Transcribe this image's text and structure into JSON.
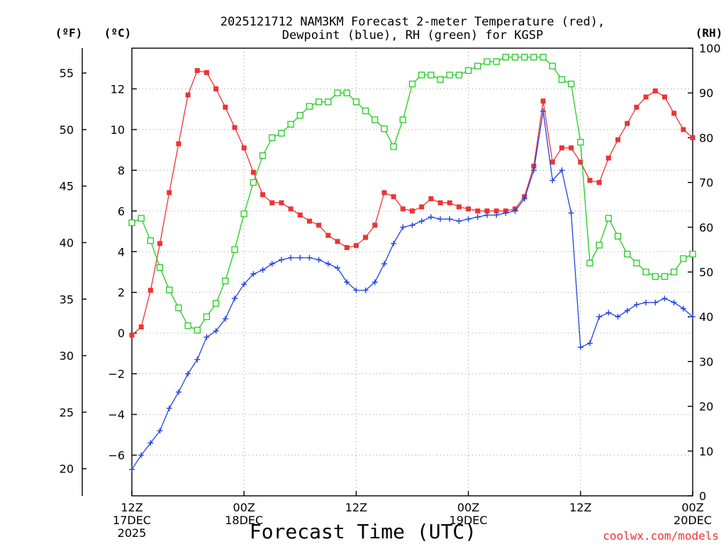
{
  "chart_data": {
    "type": "line",
    "title_line1": "2025121712 NAM3KM Forecast 2-meter Temperature (red),",
    "title_line2": "Dewpoint (blue), RH (green) for KGSP",
    "xlabel": "Forecast Time (UTC)",
    "credit": "coolwx.com/models",
    "colors": {
      "temperature": "#ee3333",
      "dewpoint": "#2244dd",
      "rh": "#22cc22"
    },
    "axes": {
      "fahrenheit": {
        "label": "(ºF)",
        "range": [
          17.6,
          57.2
        ],
        "ticks": [
          20,
          25,
          30,
          35,
          40,
          45,
          50,
          55
        ]
      },
      "celsius": {
        "label": "(ºC)",
        "range": [
          -8,
          14
        ],
        "ticks": [
          -6,
          -4,
          -2,
          0,
          2,
          4,
          6,
          8,
          10,
          12
        ]
      },
      "rh": {
        "label": "(RH)",
        "range": [
          0,
          100
        ],
        "ticks": [
          0,
          10,
          20,
          30,
          40,
          50,
          60,
          70,
          80,
          90,
          100
        ]
      },
      "time": {
        "range": [
          0,
          60
        ],
        "ticks": [
          {
            "t": 0,
            "lines": [
              "12Z",
              "17DEC",
              "2025"
            ]
          },
          {
            "t": 12,
            "lines": [
              "00Z",
              "18DEC"
            ]
          },
          {
            "t": 24,
            "lines": [
              "12Z"
            ]
          },
          {
            "t": 36,
            "lines": [
              "00Z",
              "19DEC"
            ]
          },
          {
            "t": 48,
            "lines": [
              "12Z"
            ]
          },
          {
            "t": 60,
            "lines": [
              "00Z",
              "20DEC"
            ]
          }
        ]
      }
    },
    "x": [
      0,
      1,
      2,
      3,
      4,
      5,
      6,
      7,
      8,
      9,
      10,
      11,
      12,
      13,
      14,
      15,
      16,
      17,
      18,
      19,
      20,
      21,
      22,
      23,
      24,
      25,
      26,
      27,
      28,
      29,
      30,
      31,
      32,
      33,
      34,
      35,
      36,
      37,
      38,
      39,
      40,
      41,
      42,
      43,
      44,
      45,
      46,
      47,
      48,
      49,
      50,
      51,
      52,
      53,
      54,
      55,
      56,
      57,
      58,
      59,
      60
    ],
    "series": [
      {
        "name": "2-meter Temperature",
        "unit": "C",
        "values": [
          -0.1,
          0.3,
          2.1,
          4.4,
          6.9,
          9.3,
          11.7,
          12.9,
          12.8,
          12.0,
          11.1,
          10.1,
          9.1,
          7.9,
          6.8,
          6.4,
          6.4,
          6.1,
          5.8,
          5.5,
          5.3,
          4.8,
          4.5,
          4.2,
          4.3,
          4.7,
          5.3,
          6.9,
          6.7,
          6.1,
          6.0,
          6.2,
          6.6,
          6.4,
          6.4,
          6.2,
          6.1,
          6.0,
          6.0,
          6.0,
          6.0,
          6.1,
          6.7,
          8.2,
          11.4,
          8.4,
          9.1,
          9.1,
          8.4,
          7.5,
          7.4,
          8.6,
          9.5,
          10.3,
          11.1,
          11.6,
          11.9,
          11.6,
          10.8,
          10.0,
          9.6
        ]
      },
      {
        "name": "Dewpoint",
        "unit": "C",
        "values": [
          -6.7,
          -6.0,
          -5.4,
          -4.8,
          -3.7,
          -2.9,
          -2.0,
          -1.3,
          -0.2,
          0.1,
          0.7,
          1.7,
          2.4,
          2.9,
          3.1,
          3.4,
          3.6,
          3.7,
          3.7,
          3.7,
          3.6,
          3.4,
          3.2,
          2.5,
          2.1,
          2.1,
          2.5,
          3.4,
          4.4,
          5.2,
          5.3,
          5.5,
          5.7,
          5.6,
          5.6,
          5.5,
          5.6,
          5.7,
          5.8,
          5.8,
          5.9,
          6.0,
          6.6,
          8.0,
          10.9,
          7.5,
          8.0,
          5.9,
          -0.7,
          -0.5,
          0.8,
          1.0,
          0.8,
          1.1,
          1.4,
          1.5,
          1.5,
          1.7,
          1.5,
          1.2,
          0.8
        ]
      },
      {
        "name": "RH",
        "unit": "%",
        "values": [
          61,
          62,
          57,
          51,
          46,
          42,
          38,
          37,
          40,
          43,
          48,
          55,
          63,
          70,
          76,
          80,
          81,
          83,
          85,
          87,
          88,
          88,
          90,
          90,
          88,
          86,
          84,
          82,
          78,
          84,
          92,
          94,
          94,
          93,
          94,
          94,
          95,
          96,
          97,
          97,
          98,
          98,
          98,
          98,
          98,
          96,
          93,
          92,
          79,
          52,
          56,
          62,
          58,
          54,
          52,
          50,
          49,
          49,
          50,
          53,
          54
        ]
      }
    ]
  }
}
